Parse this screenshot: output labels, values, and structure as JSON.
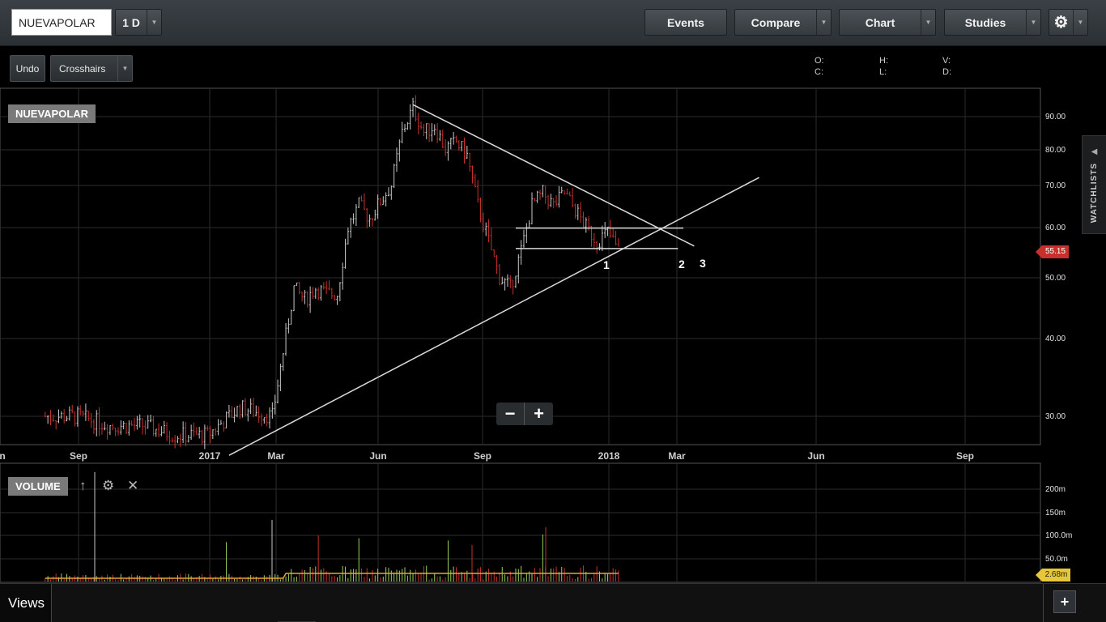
{
  "symbol_input": {
    "value": "NUEVAPOLAR"
  },
  "interval": {
    "label": "1 D"
  },
  "toolbar": {
    "events": "Events",
    "compare": "Compare",
    "chart": "Chart",
    "studies": "Studies"
  },
  "subtoolbar": {
    "undo": "Undo",
    "crosshairs": "Crosshairs"
  },
  "ohlc": {
    "o": "O:",
    "h": "H:",
    "v": "V:",
    "c": "C:",
    "l": "L:",
    "d": "D:"
  },
  "price_pane": {
    "tag": "NUEVAPOLAR",
    "current_price": "55.15",
    "y_ticks": [
      "90.00",
      "80.00",
      "70.00",
      "60.00",
      "50.00",
      "40.00",
      "30.00"
    ],
    "x_ticks": [
      "n",
      "Sep",
      "2017",
      "Mar",
      "Jun",
      "Sep",
      "2018",
      "Mar",
      "Jun",
      "Sep"
    ],
    "pattern_labels": [
      "1",
      "2",
      "3"
    ]
  },
  "volume_pane": {
    "tag": "VOLUME",
    "current_volume": "2.68m",
    "y_ticks": [
      "200m",
      "150m",
      "100.0m",
      "50.0m"
    ]
  },
  "zoom": {
    "minus": "−",
    "plus": "+"
  },
  "sidebar": {
    "watchlists": "WATCHLISTS"
  },
  "bottom": {
    "views": "Views",
    "add": "+"
  },
  "colors": {
    "background": "#000000",
    "up": "#c9c9c9",
    "down": "#c9302c",
    "volume_avg": "#e8a33a",
    "trendline": "#d8d8d8"
  },
  "chart_data": {
    "type": "candlestick",
    "scale": "log",
    "ylim": [
      26,
      96
    ],
    "price_path": [
      [
        30,
        30
      ],
      [
        33,
        30
      ],
      [
        36,
        29
      ],
      [
        39,
        29
      ],
      [
        42,
        28
      ],
      [
        45,
        28
      ],
      [
        48,
        31
      ],
      [
        51,
        30
      ],
      [
        52,
        38
      ],
      [
        53,
        48
      ],
      [
        54,
        46
      ],
      [
        55,
        48
      ],
      [
        56,
        47
      ],
      [
        57,
        47
      ],
      [
        58,
        60
      ],
      [
        59,
        65
      ],
      [
        60,
        62
      ],
      [
        61,
        66
      ],
      [
        62,
        70
      ],
      [
        63,
        85
      ],
      [
        64,
        93
      ],
      [
        65,
        85
      ],
      [
        66,
        87
      ],
      [
        67,
        80
      ],
      [
        68,
        82
      ],
      [
        69,
        78
      ],
      [
        70,
        65
      ],
      [
        71,
        57
      ],
      [
        72,
        50
      ],
      [
        73,
        48
      ],
      [
        74,
        55
      ],
      [
        75,
        65
      ],
      [
        76,
        68
      ],
      [
        77,
        65
      ],
      [
        78,
        68
      ],
      [
        79,
        64
      ],
      [
        80,
        60
      ],
      [
        81,
        57
      ],
      [
        82,
        59
      ],
      [
        83,
        55
      ]
    ],
    "trendlines": [
      {
        "from": [
          47,
          26
        ],
        "to": [
          96,
          72
        ]
      },
      {
        "from": [
          64,
          94
        ],
        "to": [
          90,
          56
        ]
      },
      {
        "from": [
          73.5,
          59.8
        ],
        "to": [
          89,
          59.8
        ]
      },
      {
        "from": [
          73.5,
          55.5
        ],
        "to": [
          88.5,
          55.5
        ]
      }
    ]
  }
}
